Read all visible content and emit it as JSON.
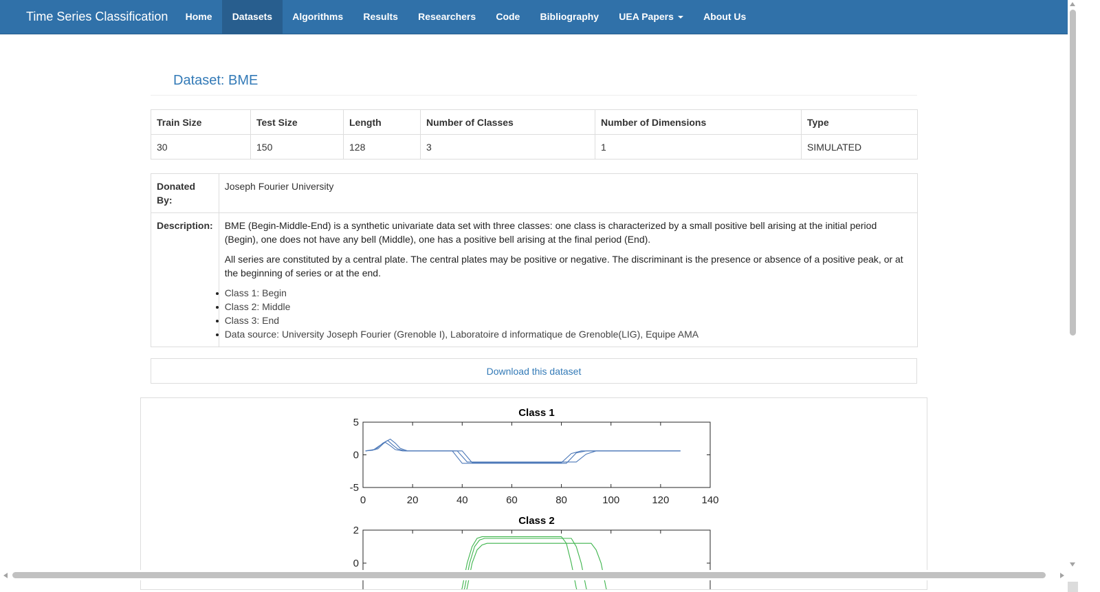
{
  "navbar": {
    "brand": "Time Series Classification",
    "items": [
      {
        "label": "Home"
      },
      {
        "label": "Datasets",
        "active": true
      },
      {
        "label": "Algorithms"
      },
      {
        "label": "Results"
      },
      {
        "label": "Researchers"
      },
      {
        "label": "Code"
      },
      {
        "label": "Bibliography"
      },
      {
        "label": "UEA Papers",
        "dropdown": true
      },
      {
        "label": "About Us"
      }
    ]
  },
  "page": {
    "title": "Dataset: BME"
  },
  "info": {
    "headers": [
      "Train Size",
      "Test Size",
      "Length",
      "Number of Classes",
      "Number of Dimensions",
      "Type"
    ],
    "values": [
      "30",
      "150",
      "128",
      "3",
      "1",
      "SIMULATED"
    ]
  },
  "details": {
    "donated_label": "Donated By:",
    "donated_value": "Joseph Fourier University",
    "description_label": "Description:",
    "paragraphs": [
      "BME (Begin-Middle-End) is a synthetic univariate data set with three classes: one class is characterized by a small positive bell arising at the initial period (Begin), one does not have any bell (Middle), one has a positive bell arising at the final period (End).",
      "All series are constituted by a central plate. The central plates may be positive or negative. The discriminant is the presence or absence of a positive peak, or at the beginning of series or at the end."
    ],
    "bullets": [
      "Class 1: Begin",
      "Class 2: Middle",
      "Class 3: End",
      "Data source: University Joseph Fourier (Grenoble I), Laboratoire d informatique de Grenoble(LIG), Equipe AMA"
    ]
  },
  "download": {
    "label": "Download this dataset"
  },
  "colors": {
    "nav_bg": "#3071a9",
    "nav_active": "#285e8e",
    "link": "#337ab7",
    "class1": "#4c78b8",
    "class2": "#3cb44b"
  },
  "chart_data": [
    {
      "type": "line",
      "title": "Class 1",
      "xlim": [
        0,
        140
      ],
      "ylim": [
        -5,
        5
      ],
      "xticks": [
        0,
        20,
        40,
        60,
        80,
        100,
        120,
        140
      ],
      "yticks": [
        -5,
        0,
        5
      ],
      "series": [
        {
          "x": [
            1,
            5,
            8,
            10,
            12,
            14,
            17,
            40,
            44,
            80,
            84,
            88,
            128
          ],
          "y": [
            0.6,
            0.8,
            1.8,
            2.2,
            1.5,
            0.9,
            0.6,
            0.6,
            -1.2,
            -1.2,
            0.2,
            0.6,
            0.6
          ]
        },
        {
          "x": [
            1,
            6,
            9,
            11,
            13,
            15,
            18,
            36,
            40,
            82,
            86,
            90,
            128
          ],
          "y": [
            0.6,
            0.9,
            2.0,
            2.4,
            1.8,
            1.0,
            0.6,
            0.6,
            -1.3,
            -1.3,
            0.3,
            0.6,
            0.6
          ]
        },
        {
          "x": [
            1,
            4,
            7,
            9,
            11,
            13,
            16,
            38,
            42,
            86,
            90,
            94,
            128
          ],
          "y": [
            0.6,
            0.7,
            1.5,
            1.9,
            1.4,
            0.8,
            0.6,
            0.6,
            -1.1,
            -1.1,
            0.1,
            0.6,
            0.6
          ]
        }
      ]
    },
    {
      "type": "line",
      "title": "Class 2",
      "ylim": [
        -2,
        2
      ],
      "yticks": [
        0,
        2
      ],
      "series": [
        {
          "x": [
            38,
            40,
            42,
            44,
            46,
            48,
            80,
            82,
            84,
            86,
            88
          ],
          "y": [
            -2.5,
            -1.5,
            0,
            1,
            1.5,
            1.6,
            1.6,
            1.2,
            0,
            -1.5,
            -2.5
          ]
        },
        {
          "x": [
            39,
            41,
            43,
            45,
            47,
            49,
            84,
            86,
            88,
            90,
            92
          ],
          "y": [
            -2.5,
            -1.5,
            0,
            1,
            1.4,
            1.5,
            1.5,
            1.0,
            0,
            -1.5,
            -2.5
          ]
        },
        {
          "x": [
            40,
            42,
            44,
            46,
            48,
            50,
            92,
            94,
            96,
            98,
            100
          ],
          "y": [
            -2.5,
            -1.5,
            0,
            0.8,
            1.1,
            1.2,
            1.2,
            0.8,
            0,
            -1.5,
            -2.5
          ]
        }
      ]
    }
  ]
}
